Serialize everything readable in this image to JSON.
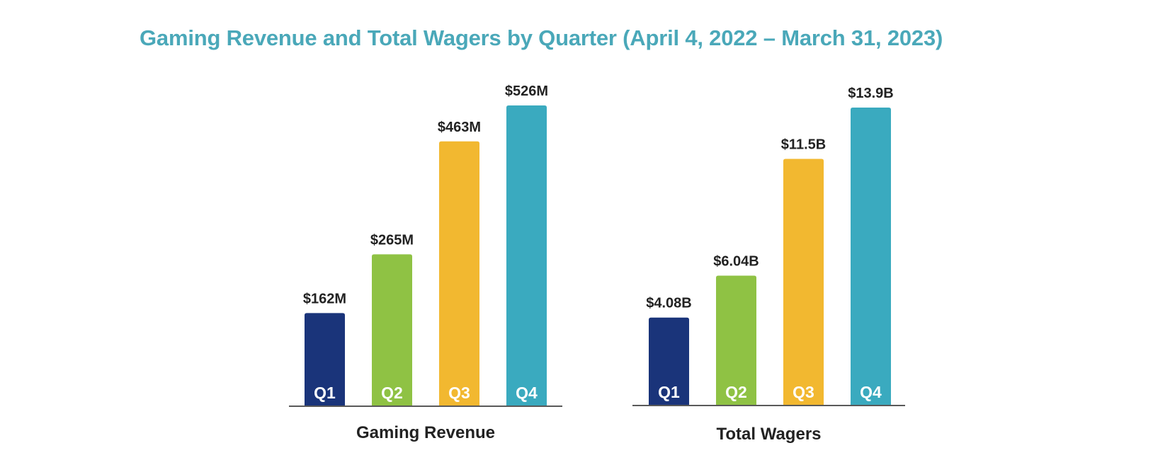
{
  "title": "Gaming Revenue and Total Wagers by Quarter (April 4, 2022 – March 31, 2023)",
  "colors": {
    "title": "#4aa8b9",
    "Q1": "#1a347a",
    "Q2": "#8fc244",
    "Q3": "#f2b830",
    "Q4": "#3aaabf",
    "axis": "#222222"
  },
  "chart_data": [
    {
      "type": "bar",
      "xlabel": "Gaming Revenue",
      "ylabel": "",
      "categories": [
        "Q1",
        "Q2",
        "Q3",
        "Q4"
      ],
      "values": [
        162,
        265,
        463,
        526
      ],
      "value_labels": [
        "$162M",
        "$265M",
        "$463M",
        "$526M"
      ],
      "unit": "$M",
      "ylim": [
        0,
        526
      ],
      "grid": false
    },
    {
      "type": "bar",
      "xlabel": "Total Wagers",
      "ylabel": "",
      "categories": [
        "Q1",
        "Q2",
        "Q3",
        "Q4"
      ],
      "values": [
        4.08,
        6.04,
        11.5,
        13.9
      ],
      "value_labels": [
        "$4.08B",
        "$6.04B",
        "$11.5B",
        "$13.9B"
      ],
      "unit": "$B",
      "ylim": [
        0,
        13.9
      ],
      "grid": false
    }
  ]
}
